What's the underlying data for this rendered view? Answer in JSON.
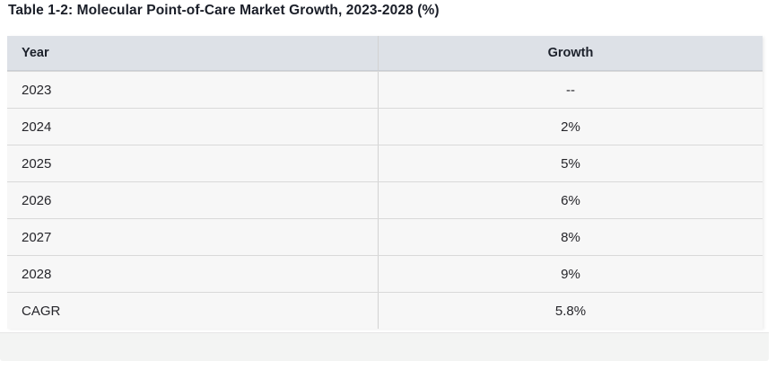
{
  "title": "Table 1-2: Molecular Point-of-Care Market Growth, 2023-2028 (%)",
  "table": {
    "headers": [
      "Year",
      "Growth"
    ],
    "rows": [
      {
        "year": "2023",
        "growth": "--"
      },
      {
        "year": "2024",
        "growth": "2%"
      },
      {
        "year": "2025",
        "growth": "5%"
      },
      {
        "year": "2026",
        "growth": "6%"
      },
      {
        "year": "2027",
        "growth": "8%"
      },
      {
        "year": "2028",
        "growth": "9%"
      },
      {
        "year": "CAGR",
        "growth": "5.8%"
      }
    ]
  },
  "colors": {
    "header_background": "#dde1e7",
    "row_background": "#f7f7f7",
    "row_divider": "#d9d9d9",
    "column_divider": "#d2d2d2",
    "title_text": "#1a1e28",
    "cell_text": "#26262b",
    "footer_strip_background": "#f3f4f3"
  },
  "chart_data": {
    "type": "table",
    "title": "Table 1-2: Molecular Point-of-Care Market Growth, 2023-2028 (%)",
    "columns": [
      "Year",
      "Growth"
    ],
    "rows": [
      [
        "2023",
        "--"
      ],
      [
        "2024",
        "2%"
      ],
      [
        "2025",
        "5%"
      ],
      [
        "2026",
        "6%"
      ],
      [
        "2027",
        "8%"
      ],
      [
        "2028",
        "9%"
      ],
      [
        "CAGR",
        "5.8%"
      ]
    ],
    "series": [
      {
        "name": "Growth (%)",
        "x": [
          2024,
          2025,
          2026,
          2027,
          2028
        ],
        "values": [
          2,
          5,
          6,
          8,
          9
        ]
      }
    ],
    "cagr_percent": 5.8
  }
}
